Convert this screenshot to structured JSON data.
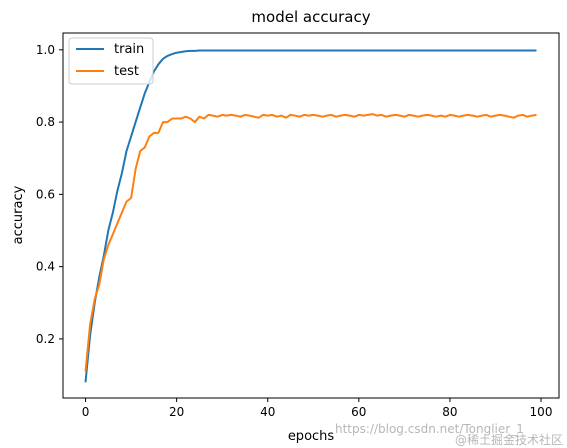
{
  "chart_data": {
    "type": "line",
    "title": "model accuracy",
    "xlabel": "epochs",
    "ylabel": "accuracy",
    "xlim": [
      -4.95,
      103.95
    ],
    "ylim": [
      0.0365,
      1.0465
    ],
    "xticks": [
      "0",
      "20",
      "40",
      "60",
      "80",
      "100"
    ],
    "yticks": [
      "0.2",
      "0.4",
      "0.6",
      "0.8",
      "1.0"
    ],
    "legend_position": "top-left",
    "grid": false,
    "series": [
      {
        "name": "train",
        "color": "#1f77b4",
        "x": [
          0,
          1,
          2,
          3,
          4,
          5,
          6,
          7,
          8,
          9,
          10,
          11,
          12,
          13,
          14,
          15,
          16,
          17,
          18,
          19,
          20,
          21,
          22,
          23,
          24,
          25,
          26,
          27,
          28,
          29,
          30,
          31,
          32,
          33,
          34,
          35,
          36,
          37,
          38,
          39,
          40,
          41,
          42,
          43,
          44,
          45,
          46,
          47,
          48,
          49,
          50,
          51,
          52,
          53,
          54,
          55,
          56,
          57,
          58,
          59,
          60,
          61,
          62,
          63,
          64,
          65,
          66,
          67,
          68,
          69,
          70,
          71,
          72,
          73,
          74,
          75,
          76,
          77,
          78,
          79,
          80,
          81,
          82,
          83,
          84,
          85,
          86,
          87,
          88,
          89,
          90,
          91,
          92,
          93,
          94,
          95,
          96,
          97,
          98,
          99
        ],
        "y": [
          0.08,
          0.21,
          0.3,
          0.37,
          0.43,
          0.5,
          0.55,
          0.61,
          0.66,
          0.72,
          0.76,
          0.8,
          0.84,
          0.88,
          0.91,
          0.94,
          0.96,
          0.975,
          0.983,
          0.988,
          0.992,
          0.994,
          0.996,
          0.997,
          0.997,
          0.998,
          0.998,
          0.998,
          0.998,
          0.998,
          0.998,
          0.998,
          0.998,
          0.998,
          0.998,
          0.998,
          0.998,
          0.998,
          0.998,
          0.998,
          0.998,
          0.998,
          0.998,
          0.998,
          0.998,
          0.998,
          0.998,
          0.998,
          0.998,
          0.998,
          0.998,
          0.998,
          0.998,
          0.998,
          0.998,
          0.998,
          0.998,
          0.998,
          0.998,
          0.998,
          0.998,
          0.998,
          0.998,
          0.998,
          0.998,
          0.998,
          0.998,
          0.998,
          0.998,
          0.998,
          0.998,
          0.998,
          0.998,
          0.998,
          0.998,
          0.998,
          0.998,
          0.998,
          0.998,
          0.998,
          0.998,
          0.998,
          0.998,
          0.998,
          0.998,
          0.998,
          0.998,
          0.998,
          0.998,
          0.998,
          0.998,
          0.998,
          0.998,
          0.998,
          0.998,
          0.998,
          0.998,
          0.998,
          0.998,
          0.998
        ]
      },
      {
        "name": "test",
        "color": "#ff7f0e",
        "x": [
          0,
          1,
          2,
          3,
          4,
          5,
          6,
          7,
          8,
          9,
          10,
          11,
          12,
          13,
          14,
          15,
          16,
          17,
          18,
          19,
          20,
          21,
          22,
          23,
          24,
          25,
          26,
          27,
          28,
          29,
          30,
          31,
          32,
          33,
          34,
          35,
          36,
          37,
          38,
          39,
          40,
          41,
          42,
          43,
          44,
          45,
          46,
          47,
          48,
          49,
          50,
          51,
          52,
          53,
          54,
          55,
          56,
          57,
          58,
          59,
          60,
          61,
          62,
          63,
          64,
          65,
          66,
          67,
          68,
          69,
          70,
          71,
          72,
          73,
          74,
          75,
          76,
          77,
          78,
          79,
          80,
          81,
          82,
          83,
          84,
          85,
          86,
          87,
          88,
          89,
          90,
          91,
          92,
          93,
          94,
          95,
          96,
          97,
          98,
          99
        ],
        "y": [
          0.11,
          0.24,
          0.31,
          0.35,
          0.42,
          0.46,
          0.49,
          0.52,
          0.55,
          0.58,
          0.59,
          0.67,
          0.72,
          0.73,
          0.76,
          0.77,
          0.77,
          0.8,
          0.8,
          0.81,
          0.81,
          0.81,
          0.815,
          0.81,
          0.8,
          0.815,
          0.81,
          0.82,
          0.818,
          0.815,
          0.82,
          0.818,
          0.82,
          0.818,
          0.815,
          0.82,
          0.818,
          0.815,
          0.812,
          0.82,
          0.818,
          0.82,
          0.815,
          0.818,
          0.812,
          0.82,
          0.818,
          0.815,
          0.82,
          0.818,
          0.82,
          0.818,
          0.815,
          0.818,
          0.82,
          0.815,
          0.818,
          0.82,
          0.818,
          0.815,
          0.82,
          0.818,
          0.82,
          0.822,
          0.818,
          0.82,
          0.815,
          0.818,
          0.82,
          0.818,
          0.815,
          0.82,
          0.818,
          0.815,
          0.818,
          0.82,
          0.818,
          0.815,
          0.818,
          0.815,
          0.82,
          0.818,
          0.815,
          0.818,
          0.82,
          0.818,
          0.815,
          0.818,
          0.82,
          0.815,
          0.818,
          0.82,
          0.818,
          0.815,
          0.812,
          0.818,
          0.82,
          0.815,
          0.818,
          0.82
        ]
      }
    ]
  },
  "watermark": {
    "line1": "https://blog.csdn.net/Tonglier_1",
    "line2": "@稀土掘金技术社区"
  }
}
